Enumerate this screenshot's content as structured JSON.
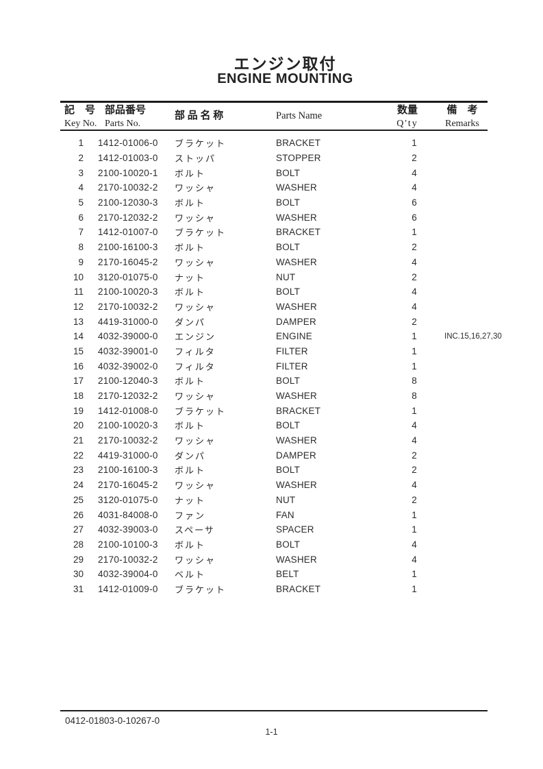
{
  "page": {
    "title_ja": "エンジン取付",
    "title_en": "ENGINE MOUNTING",
    "footer_code": "0412-01803-0-10267-0",
    "page_number": "1-1"
  },
  "colors": {
    "ink": "#262626",
    "rule": "#1c1c1c",
    "background": "#ffffff"
  },
  "table": {
    "headers": {
      "key_ja": "記　号",
      "key_en": "Key No.",
      "partno_ja": "部品番号",
      "partno_en": "Parts No.",
      "name_ja": "部 品 名 称",
      "name_en": "Parts Name",
      "qty_ja": "数量",
      "qty_en": "Q'ty",
      "remarks_ja": "備　考",
      "remarks_en": "Remarks"
    },
    "rows": [
      {
        "key": "1",
        "part_no": "1412-01006-0",
        "name_ja": "ブラケット",
        "name_en": "BRACKET",
        "qty": "1",
        "remarks": ""
      },
      {
        "key": "2",
        "part_no": "1412-01003-0",
        "name_ja": "ストッパ",
        "name_en": "STOPPER",
        "qty": "2",
        "remarks": ""
      },
      {
        "key": "3",
        "part_no": "2100-10020-1",
        "name_ja": "ボルト",
        "name_en": "BOLT",
        "qty": "4",
        "remarks": ""
      },
      {
        "key": "4",
        "part_no": "2170-10032-2",
        "name_ja": "ワッシャ",
        "name_en": "WASHER",
        "qty": "4",
        "remarks": ""
      },
      {
        "key": "5",
        "part_no": "2100-12030-3",
        "name_ja": "ボルト",
        "name_en": "BOLT",
        "qty": "6",
        "remarks": ""
      },
      {
        "key": "6",
        "part_no": "2170-12032-2",
        "name_ja": "ワッシャ",
        "name_en": "WASHER",
        "qty": "6",
        "remarks": ""
      },
      {
        "key": "7",
        "part_no": "1412-01007-0",
        "name_ja": "ブラケット",
        "name_en": "BRACKET",
        "qty": "1",
        "remarks": ""
      },
      {
        "key": "8",
        "part_no": "2100-16100-3",
        "name_ja": "ボルト",
        "name_en": "BOLT",
        "qty": "2",
        "remarks": ""
      },
      {
        "key": "9",
        "part_no": "2170-16045-2",
        "name_ja": "ワッシャ",
        "name_en": "WASHER",
        "qty": "4",
        "remarks": ""
      },
      {
        "key": "10",
        "part_no": "3120-01075-0",
        "name_ja": "ナット",
        "name_en": "NUT",
        "qty": "2",
        "remarks": ""
      },
      {
        "key": "11",
        "part_no": "2100-10020-3",
        "name_ja": "ボルト",
        "name_en": "BOLT",
        "qty": "4",
        "remarks": ""
      },
      {
        "key": "12",
        "part_no": "2170-10032-2",
        "name_ja": "ワッシャ",
        "name_en": "WASHER",
        "qty": "4",
        "remarks": ""
      },
      {
        "key": "13",
        "part_no": "4419-31000-0",
        "name_ja": "ダンパ",
        "name_en": "DAMPER",
        "qty": "2",
        "remarks": ""
      },
      {
        "key": "14",
        "part_no": "4032-39000-0",
        "name_ja": "エンジン",
        "name_en": "ENGINE",
        "qty": "1",
        "remarks": "INC.15,16,27,30"
      },
      {
        "key": "15",
        "part_no": "4032-39001-0",
        "name_ja": "フィルタ",
        "name_en": "FILTER",
        "qty": "1",
        "remarks": ""
      },
      {
        "key": "16",
        "part_no": "4032-39002-0",
        "name_ja": "フィルタ",
        "name_en": "FILTER",
        "qty": "1",
        "remarks": ""
      },
      {
        "key": "17",
        "part_no": "2100-12040-3",
        "name_ja": "ボルト",
        "name_en": "BOLT",
        "qty": "8",
        "remarks": ""
      },
      {
        "key": "18",
        "part_no": "2170-12032-2",
        "name_ja": "ワッシャ",
        "name_en": "WASHER",
        "qty": "8",
        "remarks": ""
      },
      {
        "key": "19",
        "part_no": "1412-01008-0",
        "name_ja": "ブラケット",
        "name_en": "BRACKET",
        "qty": "1",
        "remarks": ""
      },
      {
        "key": "20",
        "part_no": "2100-10020-3",
        "name_ja": "ボルト",
        "name_en": "BOLT",
        "qty": "4",
        "remarks": ""
      },
      {
        "key": "21",
        "part_no": "2170-10032-2",
        "name_ja": "ワッシャ",
        "name_en": "WASHER",
        "qty": "4",
        "remarks": ""
      },
      {
        "key": "22",
        "part_no": "4419-31000-0",
        "name_ja": "ダンパ",
        "name_en": "DAMPER",
        "qty": "2",
        "remarks": ""
      },
      {
        "key": "23",
        "part_no": "2100-16100-3",
        "name_ja": "ボルト",
        "name_en": "BOLT",
        "qty": "2",
        "remarks": ""
      },
      {
        "key": "24",
        "part_no": "2170-16045-2",
        "name_ja": "ワッシャ",
        "name_en": "WASHER",
        "qty": "4",
        "remarks": ""
      },
      {
        "key": "25",
        "part_no": "3120-01075-0",
        "name_ja": "ナット",
        "name_en": "NUT",
        "qty": "2",
        "remarks": ""
      },
      {
        "key": "26",
        "part_no": "4031-84008-0",
        "name_ja": "ファン",
        "name_en": "FAN",
        "qty": "1",
        "remarks": ""
      },
      {
        "key": "27",
        "part_no": "4032-39003-0",
        "name_ja": "スペーサ",
        "name_en": "SPACER",
        "qty": "1",
        "remarks": ""
      },
      {
        "key": "28",
        "part_no": "2100-10100-3",
        "name_ja": "ボルト",
        "name_en": "BOLT",
        "qty": "4",
        "remarks": ""
      },
      {
        "key": "29",
        "part_no": "2170-10032-2",
        "name_ja": "ワッシャ",
        "name_en": "WASHER",
        "qty": "4",
        "remarks": ""
      },
      {
        "key": "30",
        "part_no": "4032-39004-0",
        "name_ja": "ベルト",
        "name_en": "BELT",
        "qty": "1",
        "remarks": ""
      },
      {
        "key": "31",
        "part_no": "1412-01009-0",
        "name_ja": "ブラケット",
        "name_en": "BRACKET",
        "qty": "1",
        "remarks": ""
      }
    ]
  }
}
